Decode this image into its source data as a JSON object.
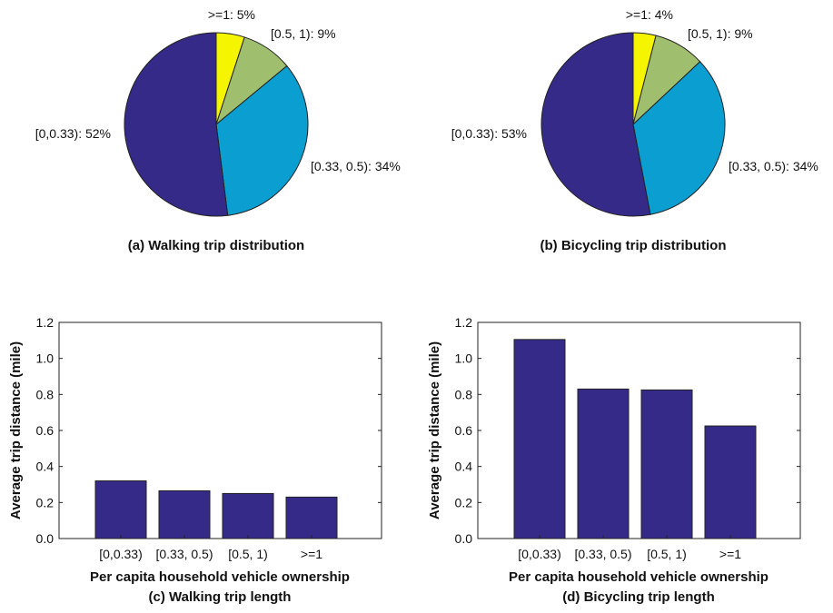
{
  "chart_data": [
    {
      "type": "pie",
      "caption": "(a) Walking trip distribution",
      "slices": [
        {
          "label": ">=1: 5%",
          "value": 5,
          "color": "#f5f500"
        },
        {
          "label": "[0.5, 1): 9%",
          "value": 9,
          "color": "#9fbe6e"
        },
        {
          "label": "[0.33, 0.5): 34%",
          "value": 34,
          "color": "#0b9ed1"
        },
        {
          "label": "[0,0.33): 52%",
          "value": 52,
          "color": "#352a87"
        }
      ]
    },
    {
      "type": "pie",
      "caption": "(b) Bicycling trip distribution",
      "slices": [
        {
          "label": ">=1: 4%",
          "value": 4,
          "color": "#f5f500"
        },
        {
          "label": "[0.5, 1): 9%",
          "value": 9,
          "color": "#9fbe6e"
        },
        {
          "label": "[0.33, 0.5): 34%",
          "value": 34,
          "color": "#0b9ed1"
        },
        {
          "label": "[0,0.33): 53%",
          "value": 53,
          "color": "#352a87"
        }
      ]
    },
    {
      "type": "bar",
      "caption": "(c) Walking trip length",
      "xlabel": "Per capita household vehicle ownership",
      "ylabel": "Average trip distance (mile)",
      "categories": [
        "[0,0.33)",
        "[0.33, 0.5)",
        "[0.5, 1)",
        ">=1"
      ],
      "values": [
        0.32,
        0.265,
        0.25,
        0.23
      ],
      "ylim": [
        0,
        1.2
      ],
      "yticks": [
        "0.0",
        "0.2",
        "0.4",
        "0.6",
        "0.8",
        "1.0",
        "1.2"
      ],
      "color": "#352a87"
    },
    {
      "type": "bar",
      "caption": "(d) Bicycling trip length",
      "xlabel": "Per capita household vehicle ownership",
      "ylabel": "Average trip distance (mile)",
      "categories": [
        "[0,0.33)",
        "[0.33, 0.5)",
        "[0.5, 1)",
        ">=1"
      ],
      "values": [
        1.105,
        0.83,
        0.825,
        0.625
      ],
      "ylim": [
        0,
        1.2
      ],
      "yticks": [
        "0.0",
        "0.2",
        "0.4",
        "0.6",
        "0.8",
        "1.0",
        "1.2"
      ],
      "color": "#352a87"
    }
  ]
}
